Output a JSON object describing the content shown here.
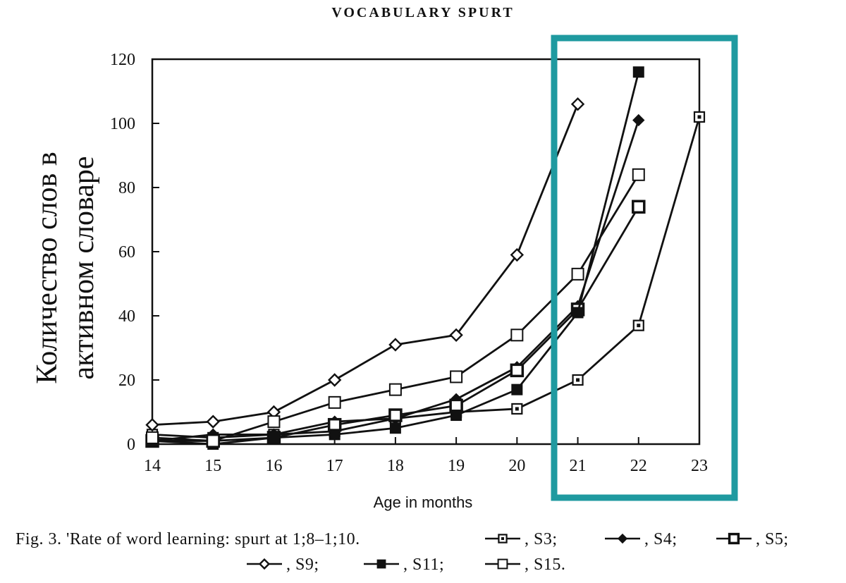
{
  "header": {
    "title": "VOCABULARY SPURT"
  },
  "caption": {
    "line1_text": "Fig. 3. 'Rate of word learning: spurt at 1;8–1;10.",
    "legend": [
      {
        "series": "S3",
        "label": ", S3;"
      },
      {
        "series": "S4",
        "label": ", S4;"
      },
      {
        "series": "S5",
        "label": ", S5;"
      },
      {
        "series": "S9",
        "label": ", S9;"
      },
      {
        "series": "S11",
        "label": ", S11;"
      },
      {
        "series": "S15",
        "label": ", S15."
      }
    ]
  },
  "colors": {
    "highlight_box": "#1f9aa0",
    "ink": "#111111"
  },
  "chart_data": {
    "type": "line",
    "title": "",
    "xlabel": "Age in months",
    "ylabel_lines": [
      "Количество слов в",
      "активном словаре"
    ],
    "xlim": [
      14,
      23
    ],
    "ylim": [
      0,
      120
    ],
    "x_ticks": [
      14,
      15,
      16,
      17,
      18,
      19,
      20,
      21,
      22,
      23
    ],
    "y_ticks": [
      0,
      20,
      40,
      60,
      80,
      100,
      120
    ],
    "grid": false,
    "highlight": {
      "x_from": 21,
      "x_to": 23,
      "label": ""
    },
    "series": [
      {
        "name": "S3",
        "marker": "square-dot",
        "x": [
          14,
          15,
          16,
          17,
          18,
          19,
          20,
          21,
          22,
          23
        ],
        "y": [
          3,
          2,
          3,
          4,
          8,
          10,
          11,
          20,
          37,
          102
        ]
      },
      {
        "name": "S4",
        "marker": "filled-diamond",
        "x": [
          14,
          15,
          16,
          17,
          18,
          19,
          20,
          21,
          22
        ],
        "y": [
          1,
          3,
          3,
          7,
          8,
          14,
          24,
          43,
          101
        ]
      },
      {
        "name": "S5",
        "marker": "square-ring",
        "x": [
          14,
          15,
          16,
          17,
          18,
          19,
          20,
          21,
          22
        ],
        "y": [
          1,
          1,
          2,
          6,
          9,
          12,
          23,
          42,
          74
        ]
      },
      {
        "name": "S9",
        "marker": "open-diamond",
        "x": [
          14,
          15,
          16,
          17,
          18,
          19,
          20,
          21
        ],
        "y": [
          6,
          7,
          10,
          20,
          31,
          34,
          59,
          106
        ]
      },
      {
        "name": "S11",
        "marker": "filled-square",
        "x": [
          14,
          15,
          16,
          17,
          18,
          19,
          20,
          21,
          22
        ],
        "y": [
          1,
          0,
          2,
          3,
          5,
          9,
          17,
          41,
          116
        ]
      },
      {
        "name": "S15",
        "marker": "open-square",
        "x": [
          14,
          15,
          16,
          17,
          18,
          19,
          20,
          21,
          22
        ],
        "y": [
          2,
          1,
          7,
          13,
          17,
          21,
          34,
          53,
          84
        ]
      }
    ]
  }
}
